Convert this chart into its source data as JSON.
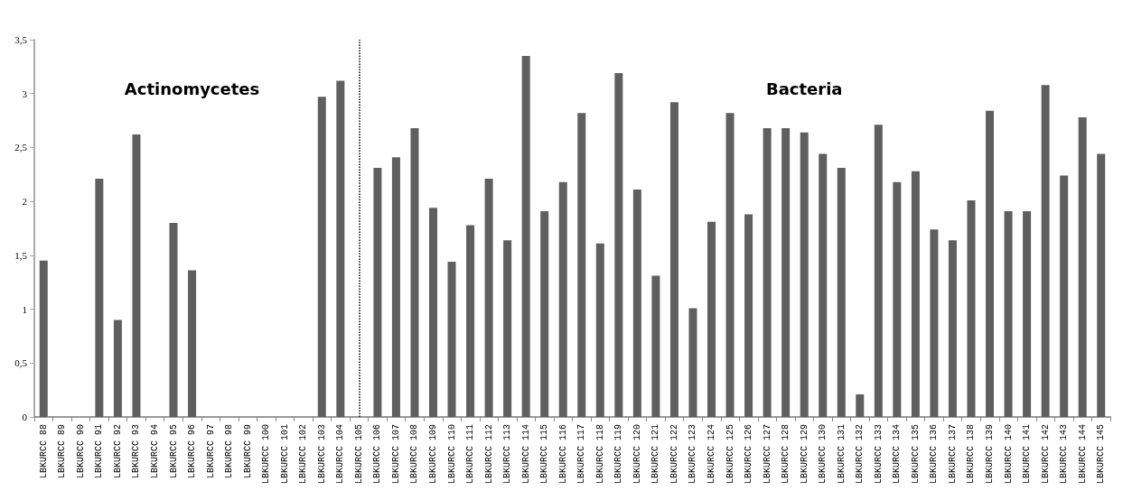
{
  "chart_data": {
    "type": "bar",
    "categories": [
      "LBKURCC 88",
      "LBKURCC 89",
      "LBKURCC 90",
      "LBKURCC 91",
      "LBKURCC 92",
      "LBKURCC 93",
      "LBKURCC 94",
      "LBKURCC 95",
      "LBKURCC 96",
      "LBKURCC 97",
      "LBKURCC 98",
      "LBKURCC 99",
      "LBKURCC 100",
      "LBKURCC 101",
      "LBKURCC 102",
      "LBKURCC 103",
      "LBKURCC 104",
      "LBKURCC 105",
      "LBKURCC 106",
      "LBKURCC 107",
      "LBKURCC 108",
      "LBKURCC 109",
      "LBKURCC 110",
      "LBKURCC 111",
      "LBKURCC 112",
      "LBKURCC 113",
      "LBKURCC 114",
      "LBKURCC 115",
      "LBKURCC 116",
      "LBKURCC 117",
      "LBKURCC 118",
      "LBKURCC 119",
      "LBKURCC 120",
      "LBKURCC 121",
      "LBKURCC 122",
      "LBKURCC 123",
      "LBKURCC 124",
      "LBKURCC 125",
      "LBKURCC 126",
      "LBKURCC 127",
      "LBKURCC 128",
      "LBKURCC 129",
      "LBKURCC 130",
      "LBKURCC 131",
      "LBKURCC 132",
      "LBKURCC 133",
      "LBKURCC 134",
      "LBKURCC 135",
      "LBKURCC 136",
      "LBKURCC 137",
      "LBKURCC 138",
      "LBKURCC 139",
      "LBKURCC 140",
      "LBKURCC 141",
      "LBKURCC 142",
      "LBKURCC 143",
      "LBKURCC 144",
      "LBKURCC 145"
    ],
    "values": [
      1.45,
      0,
      0,
      2.21,
      0.9,
      2.62,
      0,
      1.8,
      1.36,
      0,
      0,
      0,
      0,
      0,
      0,
      2.97,
      3.12,
      0,
      2.31,
      2.41,
      2.68,
      1.94,
      1.44,
      1.78,
      2.21,
      1.64,
      3.35,
      1.91,
      2.18,
      2.82,
      1.61,
      3.19,
      2.11,
      1.31,
      2.92,
      1.01,
      1.81,
      2.82,
      1.88,
      2.68,
      2.68,
      2.64,
      2.44,
      2.31,
      0.21,
      2.71,
      2.18,
      2.28,
      1.74,
      1.64,
      2.01,
      2.84,
      1.91,
      1.91,
      3.08,
      2.24,
      2.78,
      2.44
    ],
    "color": "#5f5f5f",
    "ylim": [
      0,
      3.5
    ],
    "yticks": [
      0,
      {
        "value": 0.5,
        "label": "0,5"
      },
      1,
      {
        "value": 1.5,
        "label": "1,5"
      },
      2,
      {
        "value": 2.5,
        "label": "2,5"
      },
      3,
      {
        "value": 3.5,
        "label": "3,5"
      }
    ],
    "grid": false,
    "ref_lines": [
      {
        "axis": "x",
        "value": "LBKURCC 105",
        "line_style": "dotted",
        "color": "#000000"
      }
    ],
    "annotations": [
      "Actinomycetes",
      "Bacteria"
    ]
  }
}
